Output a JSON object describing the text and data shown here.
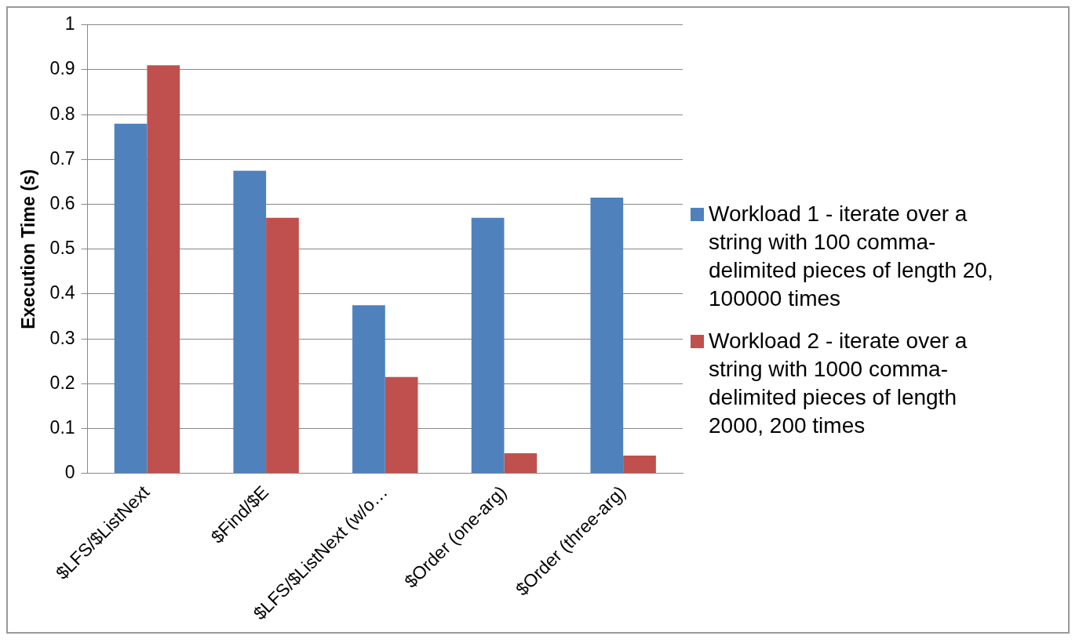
{
  "chart_data": {
    "type": "bar",
    "ylabel": "Execution Time (s)",
    "categories": [
      "$LFS/$ListNext",
      "$Find/$E",
      "$LFS/$ListNext (w/o…",
      "$Order (one-arg)",
      "$Order (three-arg)"
    ],
    "series": [
      {
        "name": "Workload 1 - iterate over a string with 100 comma-delimited pieces of length 20, 100000 times",
        "color": "#4f81bd",
        "values": [
          0.78,
          0.675,
          0.375,
          0.57,
          0.615
        ]
      },
      {
        "name": "Workload 2 - iterate over a string with 1000 comma-delimited pieces of length 2000, 200 times",
        "color": "#c0504d",
        "values": [
          0.91,
          0.57,
          0.215,
          0.045,
          0.04
        ]
      }
    ],
    "ylim": [
      0,
      1
    ],
    "yticks": [
      0,
      0.1,
      0.2,
      0.3,
      0.4,
      0.5,
      0.6,
      0.7,
      0.8,
      0.9,
      1
    ],
    "grid": "y",
    "legend": "right"
  }
}
